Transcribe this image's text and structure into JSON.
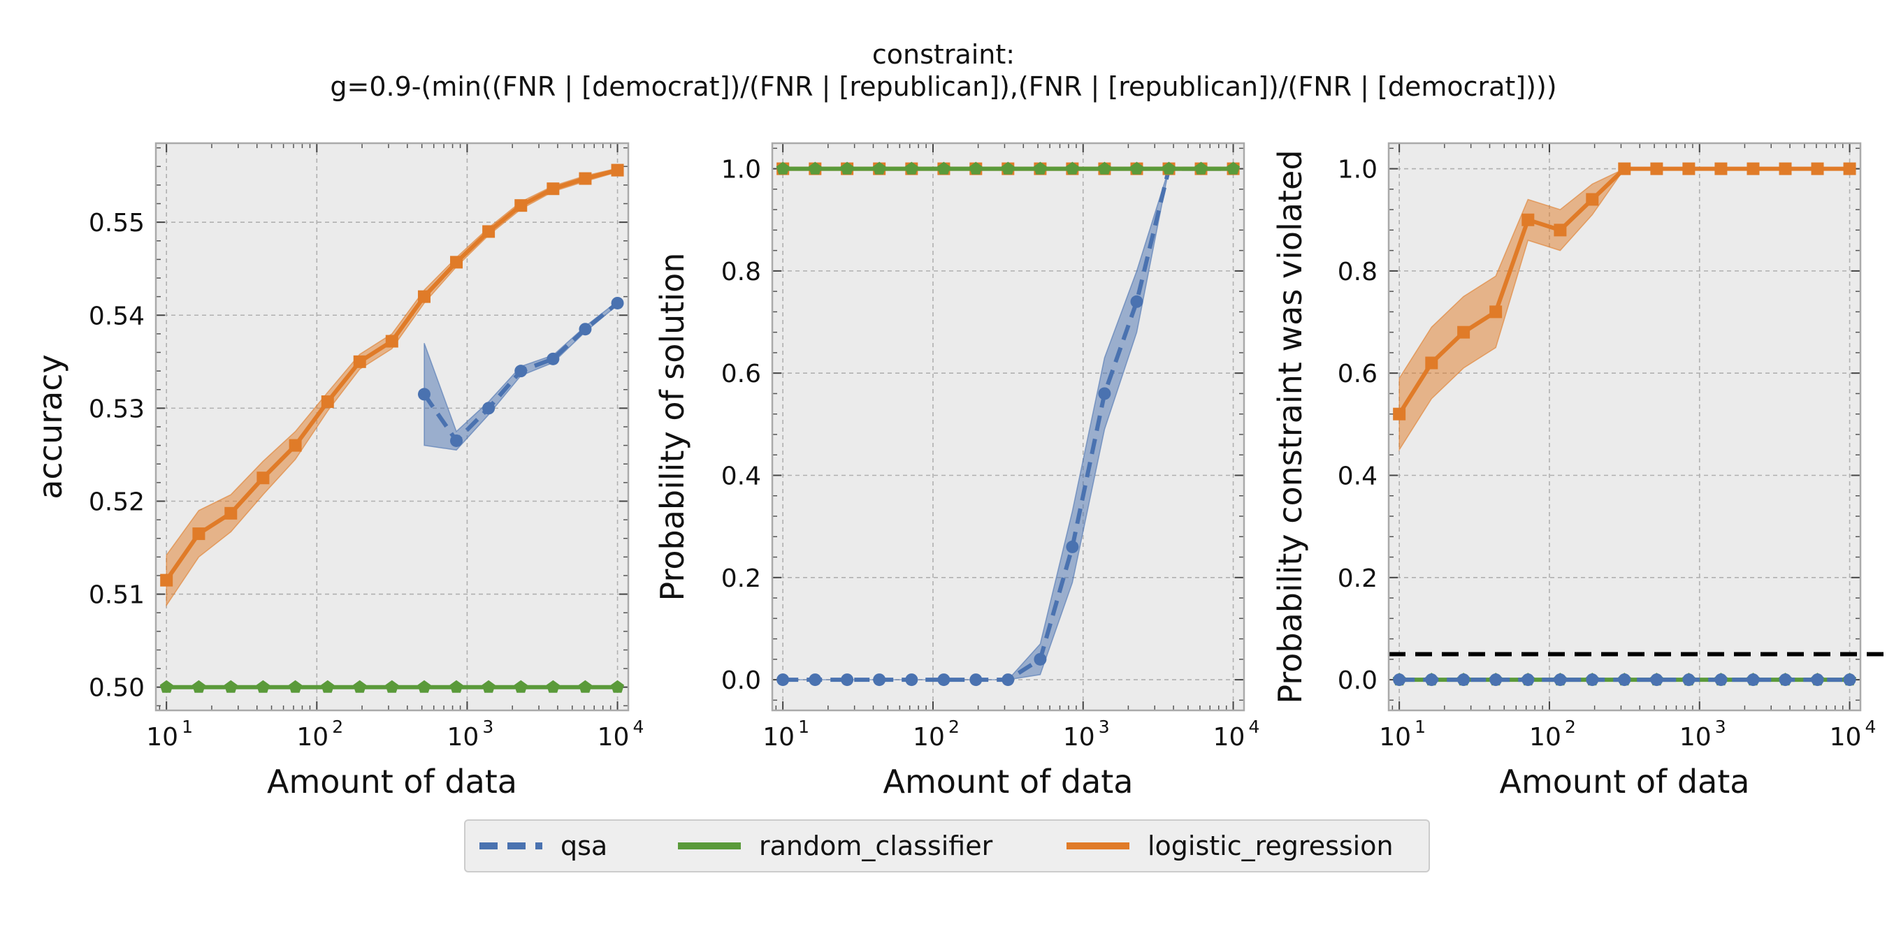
{
  "figure": {
    "title_line1": "constraint:",
    "title_line2": "g=0.9-(min((FNR | [democrat])/(FNR | [republican]),(FNR | [republican])/(FNR | [democrat])))"
  },
  "colors": {
    "qsa": "#4a72b0",
    "random_classifier": "#5a9a3a",
    "logistic_regression": "#e07b28",
    "panel_bg": "#ebebeb",
    "grid": "#b0b0b0",
    "delta_line": "#000000"
  },
  "legend": {
    "placement": "bottom-center",
    "items": [
      {
        "label": "qsa",
        "series": "qsa",
        "style": "dashed"
      },
      {
        "label": "random_classifier",
        "series": "random_classifier",
        "style": "solid"
      },
      {
        "label": "logistic_regression",
        "series": "logistic_regression",
        "style": "solid"
      }
    ]
  },
  "chart_data": [
    {
      "type": "line",
      "xlabel": "Amount of data",
      "ylabel": "accuracy",
      "xscale": "log",
      "xlim": [
        8.5,
        11800
      ],
      "ylim": [
        0.4975,
        0.5585
      ],
      "yticks": [
        0.5,
        0.51,
        0.52,
        0.53,
        0.54,
        0.55
      ],
      "ytick_labels": [
        "0.50",
        "0.51",
        "0.52",
        "0.53",
        "0.54",
        "0.55"
      ],
      "xticks": [
        10,
        100,
        1000,
        10000
      ],
      "xtick_labels": [
        {
          "base": "10",
          "exp": "1"
        },
        {
          "base": "10",
          "exp": "2"
        },
        {
          "base": "10",
          "exp": "3"
        },
        {
          "base": "10",
          "exp": "4"
        }
      ],
      "grid": true,
      "series": [
        {
          "key": "logistic_regression",
          "marker": "square",
          "dash": false,
          "x": [
            10,
            16.4,
            26.8,
            43.9,
            72,
            118,
            193,
            316,
            518,
            848,
            1389,
            2276,
            3728,
            6105,
            10000
          ],
          "y": [
            0.5115,
            0.5165,
            0.5187,
            0.5225,
            0.526,
            0.5307,
            0.535,
            0.5372,
            0.542,
            0.5457,
            0.549,
            0.5518,
            0.5536,
            0.5547,
            0.5556
          ],
          "lower": [
            0.5088,
            0.514,
            0.5167,
            0.5207,
            0.5245,
            0.5297,
            0.5342,
            0.5364,
            0.5413,
            0.5452,
            0.5486,
            0.5514,
            0.5533,
            0.5544,
            0.5554
          ],
          "upper": [
            0.5142,
            0.519,
            0.5207,
            0.5243,
            0.5275,
            0.5317,
            0.5358,
            0.538,
            0.5427,
            0.5462,
            0.5494,
            0.5522,
            0.5539,
            0.555,
            0.5558
          ]
        },
        {
          "key": "random_classifier",
          "marker": "pentagon",
          "dash": false,
          "x": [
            10,
            16.4,
            26.8,
            43.9,
            72,
            118,
            193,
            316,
            518,
            848,
            1389,
            2276,
            3728,
            6105,
            10000
          ],
          "y": [
            0.5,
            0.5,
            0.5,
            0.5,
            0.5,
            0.5,
            0.5,
            0.5,
            0.5,
            0.5,
            0.5,
            0.5,
            0.5,
            0.5,
            0.5
          ]
        },
        {
          "key": "qsa",
          "marker": "circle",
          "dash": true,
          "x": [
            518,
            848,
            1389,
            2276,
            3728,
            6105,
            10000
          ],
          "y": [
            0.5315,
            0.5265,
            0.53,
            0.534,
            0.5353,
            0.5385,
            0.5413
          ],
          "lower": [
            0.526,
            0.5255,
            0.5293,
            0.5335,
            0.5349,
            0.5382,
            0.5411
          ],
          "upper": [
            0.537,
            0.5275,
            0.5307,
            0.5345,
            0.5357,
            0.5388,
            0.5415
          ]
        }
      ]
    },
    {
      "type": "line",
      "xlabel": "Amount of data",
      "ylabel": "Probability of solution",
      "xscale": "log",
      "xlim": [
        8.5,
        11800
      ],
      "ylim": [
        -0.06,
        1.05
      ],
      "yticks": [
        0.0,
        0.2,
        0.4,
        0.6,
        0.8,
        1.0
      ],
      "ytick_labels": [
        "0.0",
        "0.2",
        "0.4",
        "0.6",
        "0.8",
        "1.0"
      ],
      "xticks": [
        10,
        100,
        1000,
        10000
      ],
      "xtick_labels": [
        {
          "base": "10",
          "exp": "1"
        },
        {
          "base": "10",
          "exp": "2"
        },
        {
          "base": "10",
          "exp": "3"
        },
        {
          "base": "10",
          "exp": "4"
        }
      ],
      "grid": true,
      "series": [
        {
          "key": "qsa",
          "marker": "circle",
          "dash": true,
          "x": [
            10,
            16.4,
            26.8,
            43.9,
            72,
            118,
            193,
            316,
            518,
            848,
            1389,
            2276,
            3728,
            6105,
            10000
          ],
          "y": [
            0,
            0,
            0,
            0,
            0,
            0,
            0,
            0,
            0.04,
            0.26,
            0.56,
            0.74,
            1.0,
            1.0,
            1.0
          ],
          "lower": [
            0,
            0,
            0,
            0,
            0,
            0,
            0,
            0,
            0.01,
            0.19,
            0.49,
            0.68,
            1.0,
            1.0,
            1.0
          ],
          "upper": [
            0,
            0,
            0,
            0,
            0,
            0,
            0,
            0,
            0.07,
            0.33,
            0.63,
            0.8,
            1.0,
            1.0,
            1.0
          ]
        },
        {
          "key": "logistic_regression",
          "marker": "square",
          "dash": false,
          "x": [
            10,
            16.4,
            26.8,
            43.9,
            72,
            118,
            193,
            316,
            518,
            848,
            1389,
            2276,
            3728,
            6105,
            10000
          ],
          "y": [
            1,
            1,
            1,
            1,
            1,
            1,
            1,
            1,
            1,
            1,
            1,
            1,
            1,
            1,
            1
          ]
        },
        {
          "key": "random_classifier",
          "marker": "pentagon",
          "dash": false,
          "x": [
            10,
            16.4,
            26.8,
            43.9,
            72,
            118,
            193,
            316,
            518,
            848,
            1389,
            2276,
            3728,
            6105,
            10000
          ],
          "y": [
            1,
            1,
            1,
            1,
            1,
            1,
            1,
            1,
            1,
            1,
            1,
            1,
            1,
            1,
            1
          ]
        }
      ]
    },
    {
      "type": "line",
      "xlabel": "Amount of data",
      "ylabel": "Probability constraint was violated",
      "xscale": "log",
      "xlim": [
        8.5,
        11800
      ],
      "ylim": [
        -0.06,
        1.05
      ],
      "yticks": [
        0.0,
        0.2,
        0.4,
        0.6,
        0.8,
        1.0
      ],
      "ytick_labels": [
        "0.0",
        "0.2",
        "0.4",
        "0.6",
        "0.8",
        "1.0"
      ],
      "xticks": [
        10,
        100,
        1000,
        10000
      ],
      "xtick_labels": [
        {
          "base": "10",
          "exp": "1"
        },
        {
          "base": "10",
          "exp": "2"
        },
        {
          "base": "10",
          "exp": "3"
        },
        {
          "base": "10",
          "exp": "4"
        }
      ],
      "grid": true,
      "hline": {
        "y": 0.05,
        "style": "dashed"
      },
      "series": [
        {
          "key": "logistic_regression",
          "marker": "square",
          "dash": false,
          "x": [
            10,
            16.4,
            26.8,
            43.9,
            72,
            118,
            193,
            316,
            518,
            848,
            1389,
            2276,
            3728,
            6105,
            10000
          ],
          "y": [
            0.52,
            0.62,
            0.68,
            0.72,
            0.9,
            0.88,
            0.94,
            1.0,
            1.0,
            1.0,
            1.0,
            1.0,
            1.0,
            1.0,
            1.0
          ],
          "lower": [
            0.45,
            0.55,
            0.61,
            0.65,
            0.86,
            0.84,
            0.91,
            1.0,
            1.0,
            1.0,
            1.0,
            1.0,
            1.0,
            1.0,
            1.0
          ],
          "upper": [
            0.59,
            0.69,
            0.75,
            0.79,
            0.94,
            0.92,
            0.97,
            1.0,
            1.0,
            1.0,
            1.0,
            1.0,
            1.0,
            1.0,
            1.0
          ]
        },
        {
          "key": "random_classifier",
          "marker": "pentagon",
          "dash": false,
          "x": [
            10,
            16.4,
            26.8,
            43.9,
            72,
            118,
            193,
            316,
            518,
            848,
            1389,
            2276,
            3728,
            6105,
            10000
          ],
          "y": [
            0,
            0,
            0,
            0,
            0,
            0,
            0,
            0,
            0,
            0,
            0,
            0,
            0,
            0,
            0
          ]
        },
        {
          "key": "qsa",
          "marker": "circle",
          "dash": true,
          "x": [
            10,
            16.4,
            26.8,
            43.9,
            72,
            118,
            193,
            316,
            518,
            848,
            1389,
            2276,
            3728,
            6105,
            10000
          ],
          "y": [
            0,
            0,
            0,
            0,
            0,
            0,
            0,
            0,
            0,
            0,
            0,
            0,
            0,
            0,
            0
          ]
        }
      ]
    }
  ]
}
